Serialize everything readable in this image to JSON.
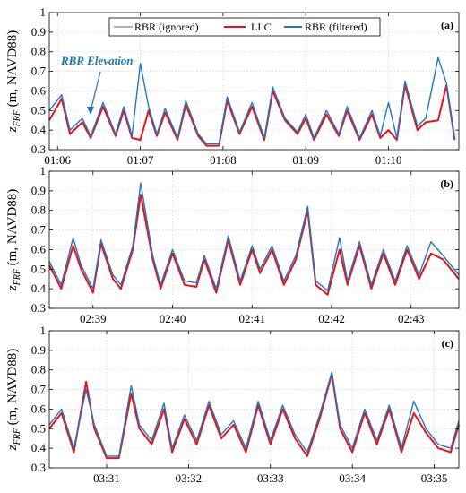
{
  "figure": {
    "legend": {
      "entries": [
        {
          "label": "RBR (ignored)",
          "color": "#999999"
        },
        {
          "label": "LLC",
          "color": "#e4141b"
        },
        {
          "label": "RBR (filtered)",
          "color": "#1f77c3"
        }
      ]
    },
    "annotation": "RBR Elevation"
  },
  "chart_data": [
    {
      "type": "line",
      "panel_label": "(a)",
      "ylabel_main": "z",
      "ylabel_sub": "FRF",
      "ylabel_rest": " (m, NAVD88)",
      "ylim": [
        0.3,
        1.0
      ],
      "yticks": [
        0.3,
        0.4,
        0.5,
        0.6,
        0.7,
        0.8,
        0.9,
        1.0
      ],
      "ytick_labels": [
        "0.3",
        "0.4",
        "0.5",
        "0.6",
        "0.7",
        "0.8",
        "0.9",
        "1"
      ],
      "xticks_min": [
        66,
        67,
        68,
        69,
        70
      ],
      "xtick_labels": [
        "01:06",
        "01:07",
        "01:08",
        "01:09",
        "01:10"
      ],
      "xlim_min": [
        65.9,
        70.85
      ],
      "grid": true,
      "series": [
        {
          "name": "LLC",
          "color": "#e4141b",
          "t_min": [
            65.9,
            66.05,
            66.15,
            66.3,
            66.4,
            66.55,
            66.7,
            66.8,
            66.9,
            67.0,
            67.1,
            67.2,
            67.3,
            67.45,
            67.55,
            67.7,
            67.8,
            67.95,
            68.05,
            68.2,
            68.35,
            68.5,
            68.6,
            68.75,
            68.9,
            69.0,
            69.1,
            69.25,
            69.4,
            69.5,
            69.65,
            69.8,
            69.9,
            70.0,
            70.1,
            70.2,
            70.35,
            70.45,
            70.6,
            70.7,
            70.8
          ],
          "values": [
            0.45,
            0.56,
            0.38,
            0.44,
            0.36,
            0.52,
            0.37,
            0.5,
            0.36,
            0.35,
            0.5,
            0.37,
            0.49,
            0.35,
            0.53,
            0.37,
            0.32,
            0.32,
            0.55,
            0.38,
            0.52,
            0.35,
            0.6,
            0.45,
            0.38,
            0.46,
            0.35,
            0.48,
            0.37,
            0.5,
            0.35,
            0.48,
            0.36,
            0.4,
            0.35,
            0.63,
            0.4,
            0.44,
            0.45,
            0.63,
            0.35
          ]
        },
        {
          "name": "RBR (filtered)",
          "color": "#1f77c3",
          "t_min": [
            65.9,
            66.05,
            66.15,
            66.3,
            66.4,
            66.55,
            66.7,
            66.8,
            66.9,
            67.0,
            67.1,
            67.2,
            67.3,
            67.45,
            67.55,
            67.7,
            67.8,
            67.95,
            68.05,
            68.2,
            68.35,
            68.5,
            68.6,
            68.75,
            68.9,
            69.0,
            69.1,
            69.25,
            69.4,
            69.5,
            69.65,
            69.8,
            69.9,
            70.0,
            70.1,
            70.2,
            70.35,
            70.45,
            70.6,
            70.7,
            70.8
          ],
          "values": [
            0.5,
            0.58,
            0.4,
            0.46,
            0.37,
            0.54,
            0.38,
            0.52,
            0.37,
            0.74,
            0.52,
            0.38,
            0.51,
            0.36,
            0.55,
            0.38,
            0.33,
            0.33,
            0.57,
            0.39,
            0.54,
            0.36,
            0.62,
            0.46,
            0.39,
            0.48,
            0.36,
            0.5,
            0.38,
            0.52,
            0.36,
            0.5,
            0.37,
            0.54,
            0.36,
            0.65,
            0.42,
            0.46,
            0.77,
            0.64,
            0.36
          ]
        }
      ]
    },
    {
      "type": "line",
      "panel_label": "(b)",
      "ylabel_main": "z",
      "ylabel_sub": "FRF",
      "ylabel_rest": " (m, NAVD88)",
      "ylim": [
        0.3,
        1.0
      ],
      "yticks": [
        0.3,
        0.4,
        0.5,
        0.6,
        0.7,
        0.8,
        0.9,
        1.0
      ],
      "ytick_labels": [
        "0.3",
        "0.4",
        "0.5",
        "0.6",
        "0.7",
        "0.8",
        "0.9",
        "1"
      ],
      "xticks_min": [
        159,
        160,
        161,
        162,
        163
      ],
      "xtick_labels": [
        "02:39",
        "02:40",
        "02:41",
        "02:42",
        "02:43"
      ],
      "xlim_min": [
        158.45,
        163.6
      ],
      "grid": true,
      "series": [
        {
          "name": "LLC",
          "color": "#e4141b",
          "t_min": [
            158.45,
            158.6,
            158.75,
            158.85,
            159.0,
            159.1,
            159.25,
            159.35,
            159.5,
            159.6,
            159.75,
            159.85,
            160.0,
            160.15,
            160.3,
            160.4,
            160.55,
            160.7,
            160.85,
            161.0,
            161.1,
            161.25,
            161.4,
            161.55,
            161.7,
            161.8,
            161.95,
            162.1,
            162.2,
            162.35,
            162.5,
            162.65,
            162.8,
            162.95,
            163.1,
            163.25,
            163.4,
            163.6
          ],
          "values": [
            0.52,
            0.4,
            0.62,
            0.5,
            0.38,
            0.63,
            0.45,
            0.4,
            0.6,
            0.88,
            0.55,
            0.4,
            0.58,
            0.42,
            0.41,
            0.55,
            0.38,
            0.65,
            0.42,
            0.6,
            0.48,
            0.6,
            0.42,
            0.55,
            0.8,
            0.42,
            0.37,
            0.6,
            0.42,
            0.62,
            0.4,
            0.58,
            0.42,
            0.6,
            0.45,
            0.58,
            0.55,
            0.45
          ]
        },
        {
          "name": "RBR (filtered)",
          "color": "#1f77c3",
          "t_min": [
            158.45,
            158.6,
            158.75,
            158.85,
            159.0,
            159.1,
            159.25,
            159.35,
            159.5,
            159.6,
            159.75,
            159.85,
            160.0,
            160.15,
            160.3,
            160.4,
            160.55,
            160.7,
            160.85,
            161.0,
            161.1,
            161.25,
            161.4,
            161.55,
            161.7,
            161.8,
            161.95,
            162.1,
            162.2,
            162.35,
            162.5,
            162.65,
            162.8,
            162.95,
            163.1,
            163.25,
            163.4,
            163.6
          ],
          "values": [
            0.54,
            0.42,
            0.66,
            0.52,
            0.4,
            0.65,
            0.47,
            0.42,
            0.62,
            0.94,
            0.57,
            0.42,
            0.6,
            0.44,
            0.43,
            0.57,
            0.4,
            0.67,
            0.44,
            0.62,
            0.5,
            0.62,
            0.44,
            0.57,
            0.82,
            0.44,
            0.39,
            0.66,
            0.44,
            0.64,
            0.42,
            0.6,
            0.44,
            0.62,
            0.47,
            0.64,
            0.57,
            0.47
          ]
        }
      ]
    },
    {
      "type": "line",
      "panel_label": "(c)",
      "ylabel_main": "z",
      "ylabel_sub": "FRF",
      "ylabel_rest": " (m, NAVD88)",
      "ylim": [
        0.3,
        1.0
      ],
      "yticks": [
        0.3,
        0.4,
        0.5,
        0.6,
        0.7,
        0.8,
        0.9,
        1.0
      ],
      "ytick_labels": [
        "0.3",
        "0.4",
        "0.5",
        "0.6",
        "0.7",
        "0.8",
        "0.9",
        "1"
      ],
      "xticks_min": [
        211,
        212,
        213,
        214,
        215
      ],
      "xtick_labels": [
        "03:31",
        "03:32",
        "03:33",
        "03:34",
        "03:35"
      ],
      "xlim_min": [
        210.3,
        215.3
      ],
      "grid": true,
      "series": [
        {
          "name": "LLC",
          "color": "#e4141b",
          "t_min": [
            210.3,
            210.45,
            210.6,
            210.75,
            210.85,
            211.0,
            211.15,
            211.3,
            211.4,
            211.55,
            211.7,
            211.8,
            211.95,
            212.1,
            212.25,
            212.4,
            212.55,
            212.7,
            212.85,
            213.0,
            213.15,
            213.3,
            213.45,
            213.6,
            213.75,
            213.85,
            214.0,
            214.15,
            214.3,
            214.45,
            214.6,
            214.75,
            214.9,
            215.05,
            215.2,
            215.3
          ],
          "values": [
            0.5,
            0.58,
            0.38,
            0.74,
            0.5,
            0.35,
            0.35,
            0.68,
            0.5,
            0.42,
            0.6,
            0.38,
            0.55,
            0.42,
            0.62,
            0.45,
            0.52,
            0.38,
            0.62,
            0.42,
            0.6,
            0.45,
            0.36,
            0.55,
            0.78,
            0.5,
            0.38,
            0.58,
            0.42,
            0.6,
            0.38,
            0.58,
            0.48,
            0.4,
            0.38,
            0.52
          ]
        },
        {
          "name": "RBR (filtered)",
          "color": "#1f77c3",
          "t_min": [
            210.3,
            210.45,
            210.6,
            210.75,
            210.85,
            211.0,
            211.15,
            211.3,
            211.4,
            211.55,
            211.7,
            211.8,
            211.95,
            212.1,
            212.25,
            212.4,
            212.55,
            212.7,
            212.85,
            213.0,
            213.15,
            213.3,
            213.45,
            213.6,
            213.75,
            213.85,
            214.0,
            214.15,
            214.3,
            214.45,
            214.6,
            214.75,
            214.9,
            215.05,
            215.2,
            215.3
          ],
          "values": [
            0.52,
            0.6,
            0.4,
            0.7,
            0.52,
            0.36,
            0.36,
            0.72,
            0.52,
            0.44,
            0.63,
            0.4,
            0.57,
            0.44,
            0.64,
            0.47,
            0.54,
            0.4,
            0.64,
            0.44,
            0.62,
            0.47,
            0.38,
            0.57,
            0.79,
            0.52,
            0.4,
            0.6,
            0.44,
            0.62,
            0.4,
            0.64,
            0.5,
            0.42,
            0.4,
            0.54
          ]
        }
      ]
    }
  ]
}
